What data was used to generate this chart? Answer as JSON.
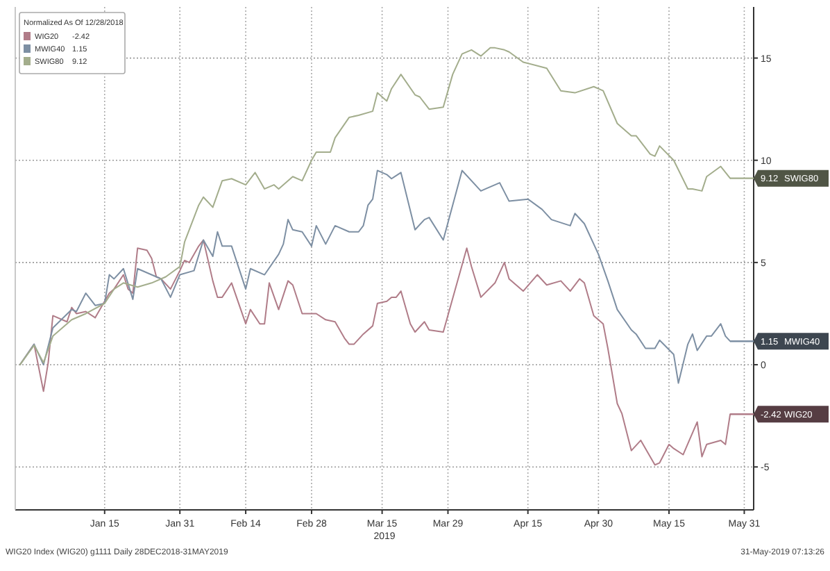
{
  "chart_data": {
    "type": "line",
    "legend_title": "Normalized As Of 12/28/2018",
    "xlabel": "2019",
    "annotations": [
      "WIG20 Index (WIG20) g1111  Daily 28DEC2018-31MAY2019",
      "31-May-2019 07:13:26"
    ],
    "xlim": [
      "2018-12-27",
      "2019-06-02"
    ],
    "xticks": [
      {
        "value": "2019-01-15",
        "label": "Jan 15"
      },
      {
        "value": "2019-01-31",
        "label": "Jan 31"
      },
      {
        "value": "2019-02-14",
        "label": "Feb 14"
      },
      {
        "value": "2019-02-28",
        "label": "Feb 28"
      },
      {
        "value": "2019-03-15",
        "label": "Mar 15"
      },
      {
        "value": "2019-03-29",
        "label": "Mar 29"
      },
      {
        "value": "2019-04-15",
        "label": "Apr 15"
      },
      {
        "value": "2019-04-30",
        "label": "Apr 30"
      },
      {
        "value": "2019-05-15",
        "label": "May 15"
      },
      {
        "value": "2019-05-31",
        "label": "May 31"
      }
    ],
    "ylim": [
      -7.1,
      17.5
    ],
    "yticks": [
      -5,
      0,
      5,
      10,
      15
    ],
    "grid": true,
    "legend": "top left",
    "line_style": "solid",
    "marker": "none",
    "series": [
      {
        "name": "WIG20",
        "color": "#b07c88",
        "x": [
          "2018-12-28",
          "2018-12-31",
          "2019-01-02",
          "2019-01-03",
          "2019-01-04",
          "2019-01-07",
          "2019-01-08",
          "2019-01-09",
          "2019-01-11",
          "2019-01-13",
          "2019-01-16",
          "2019-01-17",
          "2019-01-19",
          "2019-01-20",
          "2019-01-21",
          "2019-01-22",
          "2019-01-24",
          "2019-01-25",
          "2019-01-26",
          "2019-01-27",
          "2019-01-29",
          "2019-01-31",
          "2019-02-01",
          "2019-02-02",
          "2019-02-04",
          "2019-02-05",
          "2019-02-07",
          "2019-02-08",
          "2019-02-09",
          "2019-02-11",
          "2019-02-14",
          "2019-02-15",
          "2019-02-17",
          "2019-02-18",
          "2019-02-19",
          "2019-02-21",
          "2019-02-23",
          "2019-02-24",
          "2019-02-26",
          "2019-03-01",
          "2019-03-03",
          "2019-03-05",
          "2019-03-07",
          "2019-03-08",
          "2019-03-09",
          "2019-03-11",
          "2019-03-13",
          "2019-03-14",
          "2019-03-16",
          "2019-03-17",
          "2019-03-18",
          "2019-03-19",
          "2019-03-21",
          "2019-03-22",
          "2019-03-24",
          "2019-03-25",
          "2019-03-28",
          "2019-04-02",
          "2019-04-03",
          "2019-04-05",
          "2019-04-08",
          "2019-04-10",
          "2019-04-11",
          "2019-04-14",
          "2019-04-17",
          "2019-04-19",
          "2019-04-22",
          "2019-04-24",
          "2019-04-26",
          "2019-04-27",
          "2019-04-29",
          "2019-05-01",
          "2019-05-02",
          "2019-05-04",
          "2019-05-05",
          "2019-05-07",
          "2019-05-09",
          "2019-05-12",
          "2019-05-13",
          "2019-05-15",
          "2019-05-16",
          "2019-05-18",
          "2019-05-21",
          "2019-05-22",
          "2019-05-23",
          "2019-05-26",
          "2019-05-27",
          "2019-05-28"
        ],
        "values": [
          0,
          1.0,
          -1.3,
          0.1,
          2.4,
          2.1,
          2.8,
          2.5,
          2.6,
          2.3,
          3.5,
          3.7,
          4.4,
          3.7,
          3.5,
          5.7,
          5.6,
          5.2,
          4.3,
          4.2,
          3.7,
          4.6,
          5.1,
          5.0,
          5.8,
          6.1,
          4.1,
          3.3,
          3.3,
          4.0,
          2.0,
          2.7,
          2.0,
          2.0,
          4.0,
          2.7,
          4.1,
          3.9,
          2.5,
          2.5,
          2.2,
          2.1,
          1.3,
          1.0,
          1.0,
          1.5,
          1.9,
          3.0,
          3.1,
          3.3,
          3.3,
          3.6,
          2.0,
          1.6,
          2.1,
          1.7,
          1.6,
          5.7,
          4.8,
          3.3,
          4.0,
          5.0,
          4.2,
          3.6,
          4.4,
          3.9,
          4.1,
          3.6,
          4.2,
          4.0,
          2.4,
          2.0,
          0.8,
          -1.9,
          -2.4,
          -4.2,
          -3.7,
          -4.9,
          -4.8,
          -3.9,
          -4.1,
          -4.4,
          -2.8,
          -4.5,
          -3.9,
          -3.7,
          -3.9,
          -2.42
        ],
        "value_labels": [
          null,
          null,
          null,
          null,
          null,
          null,
          null,
          null,
          null,
          null,
          null,
          null,
          null,
          null,
          null,
          null,
          null,
          null,
          null,
          null,
          null,
          null,
          null,
          null,
          null,
          null,
          null,
          null,
          null,
          null,
          null,
          null,
          null,
          null,
          null,
          null,
          null,
          null,
          null,
          null,
          null,
          null,
          null,
          null,
          null,
          null,
          null,
          null,
          null,
          null,
          null,
          null,
          null,
          null,
          null,
          null,
          null,
          null,
          null,
          null,
          null,
          null,
          null,
          null,
          null,
          null,
          null,
          null,
          null,
          null,
          null,
          null,
          null,
          null,
          null,
          null,
          null,
          null,
          null,
          null,
          null,
          null,
          null,
          null,
          null,
          null,
          null,
          "-2.42"
        ]
      },
      {
        "name": "MWIG40",
        "color": "#7d8fa3",
        "x": [
          "2018-12-28",
          "2018-12-31",
          "2019-01-02",
          "2019-01-04",
          "2019-01-08",
          "2019-01-09",
          "2019-01-11",
          "2019-01-13",
          "2019-01-15",
          "2019-01-16",
          "2019-01-17",
          "2019-01-19",
          "2019-01-21",
          "2019-01-22",
          "2019-01-26",
          "2019-01-27",
          "2019-01-29",
          "2019-01-31",
          "2019-02-03",
          "2019-02-05",
          "2019-02-07",
          "2019-02-08",
          "2019-02-09",
          "2019-02-11",
          "2019-02-14",
          "2019-02-15",
          "2019-02-18",
          "2019-02-21",
          "2019-02-22",
          "2019-02-23",
          "2019-02-24",
          "2019-02-26",
          "2019-02-28",
          "2019-03-01",
          "2019-03-03",
          "2019-03-05",
          "2019-03-08",
          "2019-03-10",
          "2019-03-11",
          "2019-03-12",
          "2019-03-13",
          "2019-03-14",
          "2019-03-16",
          "2019-03-17",
          "2019-03-19",
          "2019-03-22",
          "2019-03-24",
          "2019-03-25",
          "2019-03-28",
          "2019-04-01",
          "2019-04-05",
          "2019-04-06",
          "2019-04-09",
          "2019-04-11",
          "2019-04-15",
          "2019-04-18",
          "2019-04-20",
          "2019-04-24",
          "2019-04-25",
          "2019-04-27",
          "2019-04-30",
          "2019-05-02",
          "2019-05-04",
          "2019-05-07",
          "2019-05-08",
          "2019-05-10",
          "2019-05-12",
          "2019-05-13",
          "2019-05-16",
          "2019-05-17",
          "2019-05-19",
          "2019-05-20",
          "2019-05-21",
          "2019-05-23",
          "2019-05-24",
          "2019-05-26",
          "2019-05-27",
          "2019-05-28"
        ],
        "values": [
          0,
          1.0,
          0,
          1.8,
          2.7,
          2.6,
          3.5,
          2.9,
          3.0,
          4.4,
          4.2,
          4.7,
          3.2,
          4.7,
          4.3,
          4.2,
          3.3,
          4.4,
          4.6,
          6.1,
          5.3,
          6.5,
          5.8,
          5.8,
          3.7,
          4.7,
          4.4,
          5.4,
          5.9,
          7.1,
          6.6,
          6.5,
          5.8,
          6.8,
          5.9,
          6.8,
          6.5,
          6.5,
          6.8,
          7.8,
          8.1,
          9.5,
          9.3,
          9.1,
          9.4,
          6.6,
          7.1,
          7.2,
          6.1,
          9.5,
          8.5,
          8.6,
          8.9,
          8.0,
          8.1,
          7.6,
          7.1,
          6.8,
          7.4,
          6.9,
          5.4,
          4.1,
          2.7,
          1.7,
          1.5,
          0.8,
          0.8,
          1.2,
          0.5,
          -0.9,
          1.0,
          1.5,
          0.7,
          1.4,
          1.4,
          2.0,
          1.4,
          1.15
        ],
        "value_labels": [
          null,
          null,
          null,
          null,
          null,
          null,
          null,
          null,
          null,
          null,
          null,
          null,
          null,
          null,
          null,
          null,
          null,
          null,
          null,
          null,
          null,
          null,
          null,
          null,
          null,
          null,
          null,
          null,
          null,
          null,
          null,
          null,
          null,
          null,
          null,
          null,
          null,
          null,
          null,
          null,
          null,
          null,
          null,
          null,
          null,
          null,
          null,
          null,
          null,
          null,
          null,
          null,
          null,
          null,
          null,
          null,
          null,
          null,
          null,
          null,
          null,
          null,
          null,
          null,
          null,
          null,
          null,
          null,
          null,
          null,
          null,
          null,
          null,
          null,
          null,
          null,
          null,
          "1.15"
        ]
      },
      {
        "name": "SWIG80",
        "color": "#a3ad8c",
        "x": [
          "2018-12-28",
          "2018-12-31",
          "2019-01-02",
          "2019-01-04",
          "2019-01-08",
          "2019-01-11",
          "2019-01-15",
          "2019-01-17",
          "2019-01-19",
          "2019-01-22",
          "2019-01-25",
          "2019-01-28",
          "2019-01-31",
          "2019-02-01",
          "2019-02-04",
          "2019-02-05",
          "2019-02-07",
          "2019-02-09",
          "2019-02-11",
          "2019-02-14",
          "2019-02-16",
          "2019-02-18",
          "2019-02-20",
          "2019-02-21",
          "2019-02-24",
          "2019-02-26",
          "2019-02-28",
          "2019-03-01",
          "2019-03-04",
          "2019-03-05",
          "2019-03-08",
          "2019-03-10",
          "2019-03-13",
          "2019-03-14",
          "2019-03-16",
          "2019-03-17",
          "2019-03-19",
          "2019-03-22",
          "2019-03-23",
          "2019-03-25",
          "2019-03-28",
          "2019-03-30",
          "2019-04-01",
          "2019-04-03",
          "2019-04-05",
          "2019-04-07",
          "2019-04-08",
          "2019-04-10",
          "2019-04-11",
          "2019-04-14",
          "2019-04-19",
          "2019-04-22",
          "2019-04-25",
          "2019-04-29",
          "2019-05-01",
          "2019-05-04",
          "2019-05-07",
          "2019-05-08",
          "2019-05-11",
          "2019-05-12",
          "2019-05-13",
          "2019-05-16",
          "2019-05-19",
          "2019-05-20",
          "2019-05-22",
          "2019-05-23",
          "2019-05-26",
          "2019-05-28"
        ],
        "values": [
          0,
          0.95,
          0.1,
          1.4,
          2.2,
          2.5,
          3.0,
          3.7,
          4.0,
          3.8,
          4.0,
          4.3,
          4.8,
          6.0,
          7.8,
          8.2,
          7.7,
          9.0,
          9.1,
          8.8,
          9.4,
          8.6,
          8.8,
          8.6,
          9.2,
          9.0,
          10.0,
          10.4,
          10.4,
          11.1,
          12.1,
          12.2,
          12.4,
          13.3,
          12.9,
          13.5,
          14.2,
          13.2,
          13.1,
          12.5,
          12.6,
          14.2,
          15.2,
          15.4,
          15.1,
          15.5,
          15.5,
          15.4,
          15.3,
          14.8,
          14.5,
          13.4,
          13.3,
          13.6,
          13.4,
          11.8,
          11.2,
          11.2,
          10.3,
          10.2,
          10.7,
          10.0,
          8.6,
          8.6,
          8.5,
          9.2,
          9.7,
          9.12
        ],
        "value_labels": [
          null,
          null,
          null,
          null,
          null,
          null,
          null,
          null,
          null,
          null,
          null,
          null,
          null,
          null,
          null,
          null,
          null,
          null,
          null,
          null,
          null,
          null,
          null,
          null,
          null,
          null,
          null,
          null,
          null,
          null,
          null,
          null,
          null,
          null,
          null,
          null,
          null,
          null,
          null,
          null,
          null,
          null,
          null,
          null,
          null,
          null,
          null,
          null,
          null,
          null,
          null,
          null,
          null,
          null,
          null,
          null,
          null,
          null,
          null,
          null,
          null,
          null,
          null,
          null,
          null,
          null,
          null,
          "9.12"
        ]
      }
    ]
  }
}
